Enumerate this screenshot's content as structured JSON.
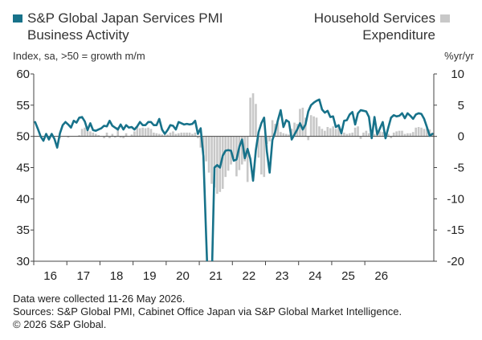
{
  "legend": {
    "line_label_1": "S&P Global Japan Services PMI",
    "line_label_2": "Business Activity",
    "bar_label_1": "Household Services",
    "bar_label_2": "Expenditure"
  },
  "units": {
    "left": "Index, sa, >50 = growth m/m",
    "right": "%yr/yr"
  },
  "footer": {
    "line1": "Data were collected 11-26 May 2026.",
    "line2": "Sources: S&P Global PMI, Cabinet Office Japan via S&P Global Market Intelligence.",
    "line3": "© 2026 S&P Global."
  },
  "colors": {
    "line": "#17728a",
    "bar": "#c8c8c8",
    "axis": "#444444"
  },
  "chart_data": {
    "type": "line",
    "x_start": "2016-01",
    "x_end": "2026-05",
    "x_tick_labels": [
      "16",
      "17",
      "18",
      "19",
      "20",
      "21",
      "22",
      "23",
      "24",
      "25",
      "26"
    ],
    "left_axis": {
      "ylim": [
        30,
        60
      ],
      "ticks": [
        "60",
        "55",
        "50",
        "45",
        "40",
        "35",
        "30"
      ]
    },
    "right_axis": {
      "ylim": [
        -20,
        10
      ],
      "ticks": [
        "10",
        "5",
        "0",
        "-5",
        "-10",
        "-15",
        "-20"
      ]
    },
    "series": [
      {
        "name": "S&P Global Japan Services PMI Business Activity",
        "axis": "left",
        "style": "line",
        "values": [
          52.3,
          51.2,
          50.0,
          49.3,
          50.4,
          49.5,
          50.4,
          49.6,
          48.2,
          50.5,
          51.8,
          52.3,
          51.9,
          51.4,
          52.5,
          52.2,
          53.0,
          53.1,
          52.4,
          51.0,
          52.1,
          51.0,
          50.9,
          51.1,
          51.3,
          51.7,
          51.6,
          52.5,
          51.7,
          51.4,
          51.1,
          51.9,
          51.1,
          51.8,
          51.4,
          51.5,
          51.1,
          51.6,
          52.3,
          51.8,
          51.8,
          52.3,
          52.3,
          51.8,
          51.8,
          52.8,
          51.1,
          50.4,
          51.0,
          51.8,
          51.7,
          51.1,
          52.3,
          52.1,
          51.9,
          52.0,
          51.9,
          52.0,
          52.5,
          50.4,
          51.3,
          46.8,
          33.8,
          21.5,
          26.5,
          45.0,
          45.4,
          45.0,
          46.9,
          47.7,
          47.8,
          47.7,
          46.1,
          46.3,
          48.3,
          49.5,
          46.5,
          48.0,
          46.4,
          42.9,
          47.8,
          50.7,
          52.1,
          53.0,
          47.6,
          44.2,
          49.4,
          50.7,
          52.6,
          54.2,
          51.5,
          52.6,
          52.3,
          49.5,
          50.3,
          51.1,
          52.1,
          51.1,
          51.9,
          54.0,
          55.0,
          55.4,
          55.7,
          55.9,
          54.3,
          53.8,
          54.1,
          53.1,
          53.2,
          51.5,
          51.8,
          50.5,
          52.5,
          52.6,
          53.5,
          53.9,
          51.9,
          53.7,
          54.2,
          54.1,
          54.0,
          53.1,
          49.7,
          53.1,
          50.3,
          51.3,
          52.3,
          49.7,
          51.4,
          53.0,
          53.4,
          53.2,
          53.3,
          53.7,
          52.9,
          53.7,
          53.3,
          52.8,
          53.5,
          53.7,
          53.6,
          52.8,
          51.5,
          50.1,
          50.4
        ]
      },
      {
        "name": "Household Services Expenditure",
        "axis": "right",
        "style": "bar",
        "values": [
          0,
          0,
          0,
          0,
          0,
          0,
          0,
          0,
          0,
          -0.3,
          0,
          0,
          -0.2,
          0,
          0,
          0,
          0.2,
          1.2,
          1.4,
          1.2,
          0.8,
          0.6,
          0.4,
          0.2,
          0,
          -0.3,
          0.6,
          -0.3,
          0.4,
          -0.2,
          1.5,
          -0.2,
          -0.3,
          0.5,
          0,
          0.3,
          0.8,
          1.6,
          1.3,
          1.4,
          1.3,
          1.4,
          1.2,
          0.6,
          0.5,
          0.4,
          0.3,
          0.2,
          0.3,
          0.6,
          0.8,
          0.4,
          0.5,
          0.6,
          0.6,
          0.6,
          0.6,
          0.4,
          0.6,
          -0.3,
          -1.8,
          -2.7,
          -4.0,
          -5.8,
          -7.6,
          -8.2,
          -9.2,
          -8.9,
          -8.4,
          -6.5,
          -5.5,
          -4.5,
          -3.5,
          -6.4,
          -5.4,
          -4.5,
          -4.0,
          -7.3,
          6.2,
          6.9,
          5.2,
          -3.4,
          -6.1,
          -6.5,
          -1.2,
          -0.8,
          2.6,
          2.0,
          2.2,
          0.7,
          0.5,
          0.4,
          0.3,
          1.2,
          2.2,
          2.0,
          4.4,
          4.6,
          3.0,
          -0.6,
          3.4,
          3.2,
          3.0,
          1.6,
          1.2,
          0.9,
          1.5,
          1.3,
          1.6,
          1.2,
          1.5,
          0.8,
          0.6,
          0.4,
          0.5,
          0.6,
          1.4,
          1.6,
          -0.4,
          0.6,
          0.9,
          0.5,
          0.7,
          0.4,
          0.2,
          0.8,
          0.7,
          0.5,
          0.4,
          -0.3,
          0.6,
          0.8,
          0.9,
          0.9,
          0.4,
          0.5,
          0.5,
          0.7,
          1.4,
          1.5,
          1.4,
          1.2,
          1.3,
          1.1,
          0.6,
          0.2,
          0.3
        ]
      }
    ],
    "grid": false,
    "legend_position": "top"
  }
}
